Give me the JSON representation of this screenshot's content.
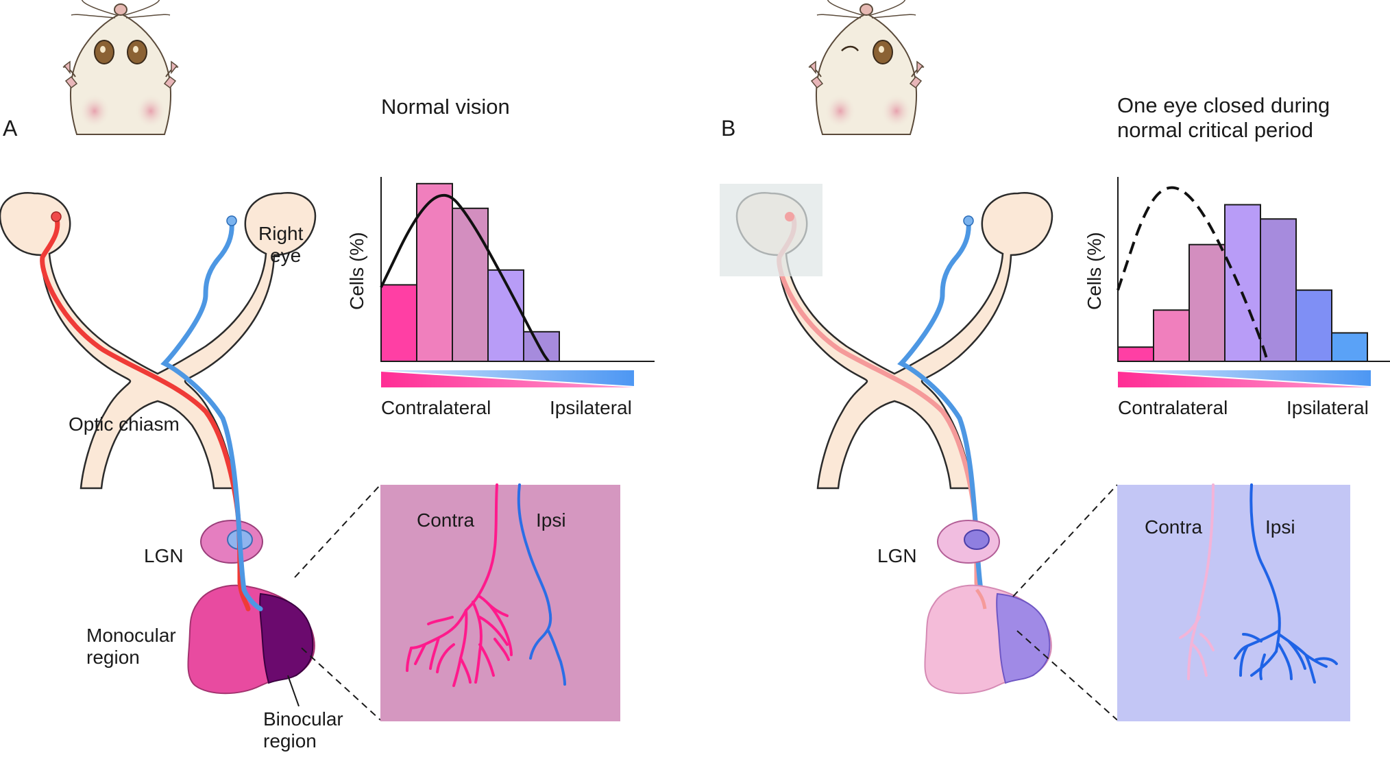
{
  "panel_a": {
    "letter": "A",
    "title": "Normal vision",
    "right_eye_line1": "Right",
    "right_eye_line2": "eye",
    "optic_chiasm": "Optic chiasm",
    "lgn": "LGN",
    "monocular_line1": "Monocular",
    "monocular_line2": "region",
    "binocular_line1": "Binocular",
    "binocular_line2": "region",
    "inset_contra": "Contra",
    "inset_ipsi": "Ipsi",
    "chart_ylabel": "Cells (%)",
    "chart_xleft": "Contralateral",
    "chart_xright": "Ipsilateral"
  },
  "panel_b": {
    "letter": "B",
    "title_line1": "One eye closed during",
    "title_line2": "normal critical period",
    "lgn": "LGN",
    "inset_contra": "Contra",
    "inset_ipsi": "Ipsi",
    "chart_ylabel": "Cells (%)",
    "chart_xleft": "Contralateral",
    "chart_xright": "Ipsilateral"
  },
  "colors": {
    "contra": "#ef2a5a",
    "ipsi": "#4d97e3",
    "inset_a_bg": "#d597c0",
    "inset_b_bg": "#c3c6f5",
    "cortex_a_mono": "#e84ba0",
    "cortex_a_bino": "#6b0a6e",
    "cortex_b_mono": "#f4bcd9",
    "cortex_b_bino": "#a08ae6"
  },
  "chart_data": [
    {
      "type": "bar",
      "panel": "A",
      "ylabel": "Cells (%)",
      "categories": [
        "1",
        "2",
        "3",
        "4",
        "5",
        "6",
        "7"
      ],
      "values": [
        31,
        72,
        62,
        37,
        12,
        0,
        0
      ],
      "bar_colors": [
        "#ff3fa4",
        "#f07fbd",
        "#d38ebf",
        "#b89cf7",
        "#a68bdd",
        "#7f8ff5",
        "#5aa2f7"
      ],
      "curve": "solid",
      "curve_points": [
        [
          1,
          30
        ],
        [
          2,
          60
        ],
        [
          2.8,
          70
        ],
        [
          3.5,
          58
        ],
        [
          4.5,
          32
        ],
        [
          5.5,
          4
        ],
        [
          5.7,
          0
        ]
      ],
      "ylim": [
        0,
        75
      ]
    },
    {
      "type": "bar",
      "panel": "B",
      "ylabel": "Cells (%)",
      "categories": [
        "1",
        "2",
        "3",
        "4",
        "5",
        "6",
        "7"
      ],
      "values": [
        5,
        18,
        41,
        55,
        50,
        25,
        10
      ],
      "bar_colors": [
        "#ff3fa4",
        "#f07fbd",
        "#d38ebf",
        "#b89cf7",
        "#a68bdd",
        "#7f8ff5",
        "#5aa2f7"
      ],
      "curve": "dashed",
      "curve_points": [
        [
          1,
          25
        ],
        [
          1.8,
          55
        ],
        [
          2.5,
          63
        ],
        [
          3.3,
          55
        ],
        [
          4.3,
          30
        ],
        [
          5,
          8
        ],
        [
          5.2,
          0
        ]
      ],
      "ylim": [
        0,
        65
      ]
    }
  ]
}
